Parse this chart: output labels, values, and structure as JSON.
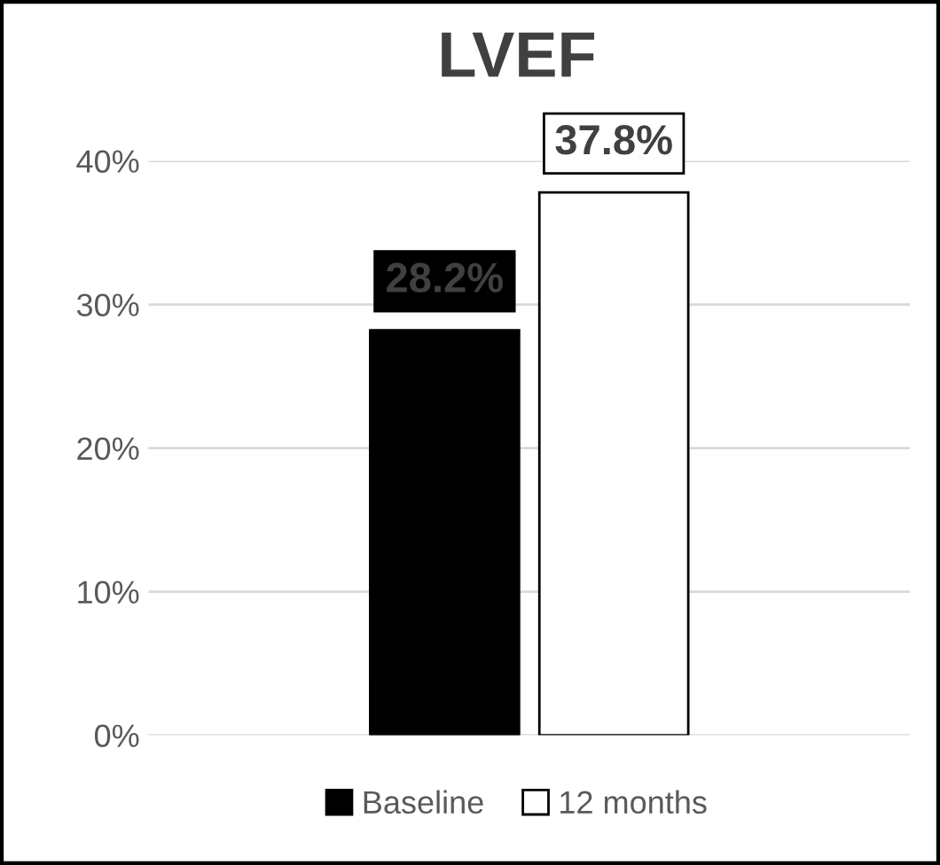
{
  "chart_data": {
    "type": "bar",
    "title": "LVEF",
    "categories": [
      null
    ],
    "series": [
      {
        "name": "Baseline",
        "color": "#000000",
        "values": [
          28.2
        ],
        "value_labels": [
          "28.2%"
        ]
      },
      {
        "name": "12 months",
        "color": "#ffffff",
        "values": [
          37.8
        ],
        "value_labels": [
          "37.8%"
        ]
      }
    ],
    "ylim": [
      0,
      40
    ],
    "yticks": [
      {
        "value": 0,
        "label": "0%"
      },
      {
        "value": 10,
        "label": "10%"
      },
      {
        "value": 20,
        "label": "20%"
      },
      {
        "value": 30,
        "label": "30%"
      },
      {
        "value": 40,
        "label": "40%"
      }
    ],
    "grid": "y",
    "legend": "bottom"
  }
}
